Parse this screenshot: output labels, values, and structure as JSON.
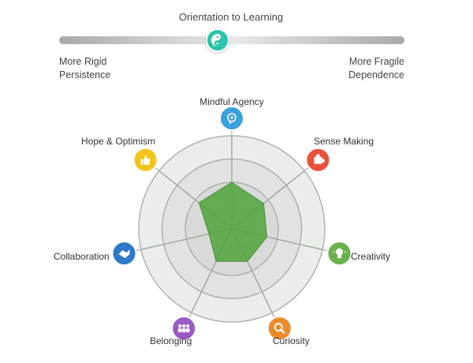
{
  "slider": {
    "title": "Orientation to Learning",
    "left_label": [
      "More Rigid",
      "Persistence"
    ],
    "right_label": [
      "More Fragile",
      "Dependence"
    ],
    "value_fraction": 0.46,
    "knob_color": "#2cc3ad",
    "knob_icon": "yin-yang-icon"
  },
  "chart_data": {
    "type": "radar",
    "scale_max": 4,
    "rings": 4,
    "fill_color": "#5eaa4a",
    "categories": [
      {
        "label": "Mindful Agency",
        "value": 2.0,
        "color": "#3aa0e0",
        "icon": "head-icon"
      },
      {
        "label": "Sense Making",
        "value": 1.75,
        "color": "#e9503a",
        "icon": "puzzle-icon"
      },
      {
        "label": "Creativity",
        "value": 1.55,
        "color": "#6ab04c",
        "icon": "lightbulb-icon"
      },
      {
        "label": "Curiosity",
        "value": 1.55,
        "color": "#ef8a2c",
        "icon": "magnifier-icon"
      },
      {
        "label": "Belonging",
        "value": 1.55,
        "color": "#9b59c6",
        "icon": "people-icon"
      },
      {
        "label": "Collaboration",
        "value": 1.0,
        "color": "#2e78c7",
        "icon": "handshake-icon"
      },
      {
        "label": "Hope & Optimism",
        "value": 1.8,
        "color": "#f2c418",
        "icon": "thumbs-up-icon"
      }
    ]
  }
}
